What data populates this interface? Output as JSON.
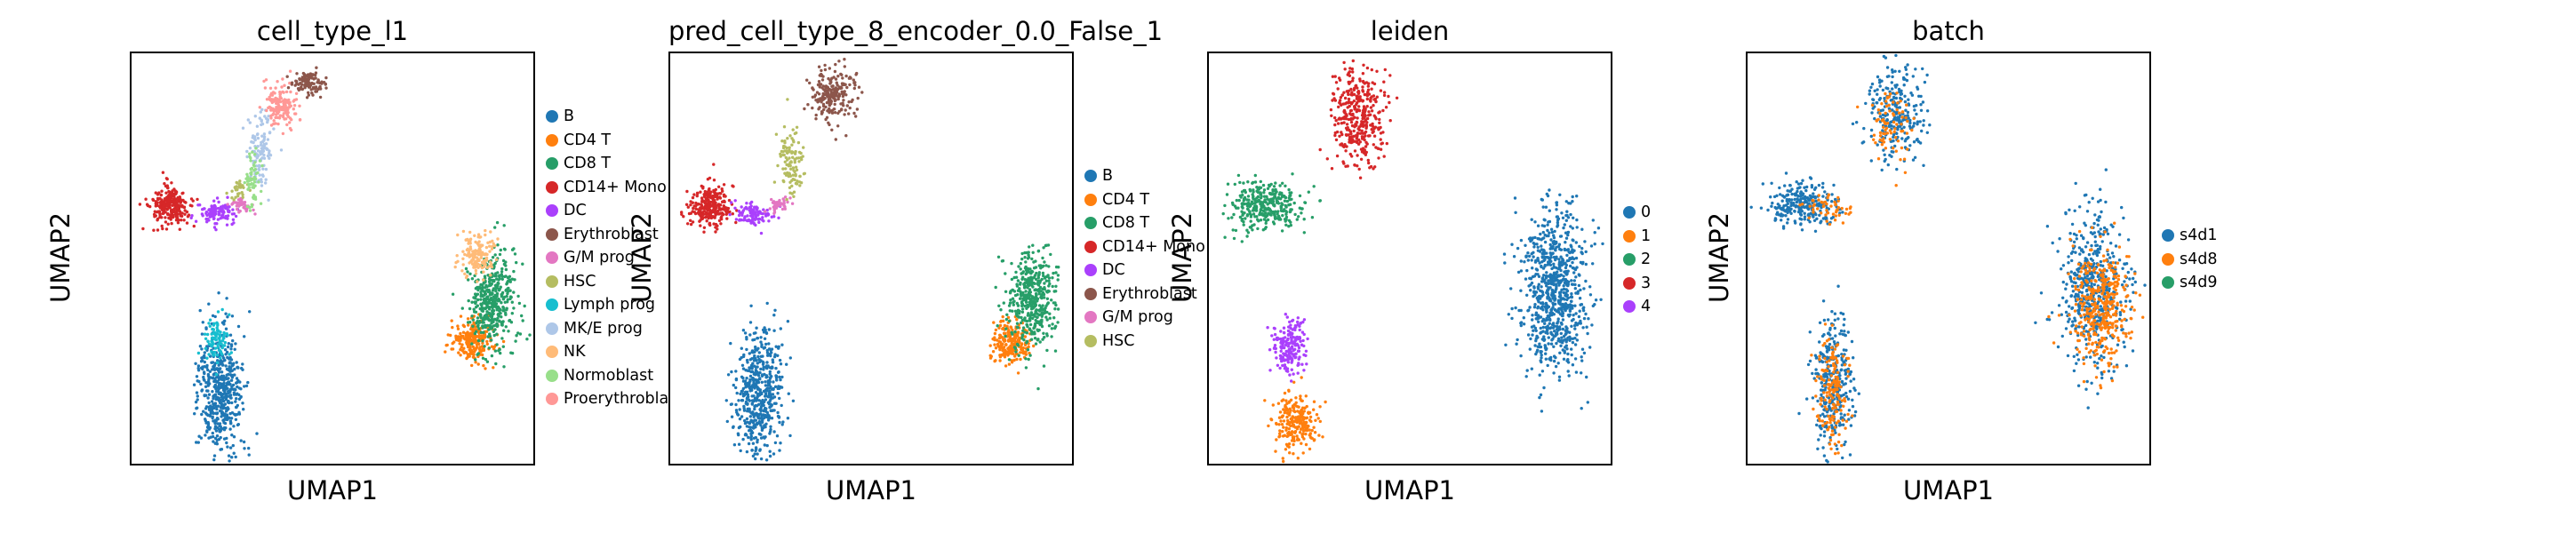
{
  "chart_data": [
    {
      "type": "scatter",
      "title": "cell_type_l1",
      "xlabel": "UMAP1",
      "ylabel": "UMAP2",
      "legend_position": "right",
      "grid": false,
      "categories": [
        {
          "name": "B",
          "color": "#1f77b4"
        },
        {
          "name": "CD4 T",
          "color": "#ff7f0e"
        },
        {
          "name": "CD8 T",
          "color": "#279e68"
        },
        {
          "name": "CD14+ Mono",
          "color": "#d62728"
        },
        {
          "name": "DC",
          "color": "#aa40fc"
        },
        {
          "name": "Erythroblast",
          "color": "#8c564b"
        },
        {
          "name": "G/M prog",
          "color": "#e377c2"
        },
        {
          "name": "HSC",
          "color": "#b5bd61"
        },
        {
          "name": "Lymph prog",
          "color": "#17becf"
        },
        {
          "name": "MK/E prog",
          "color": "#aec7e8"
        },
        {
          "name": "NK",
          "color": "#ffbb78"
        },
        {
          "name": "Normoblast",
          "color": "#98df8a"
        },
        {
          "name": "Proerythroblast",
          "color": "#ff9896"
        }
      ],
      "clusters": [
        {
          "label": "B",
          "center": [
            0.22,
            0.82
          ],
          "size": [
            0.06,
            0.16
          ],
          "n": 520
        },
        {
          "label": "Lymph prog",
          "center": [
            0.21,
            0.7
          ],
          "size": [
            0.03,
            0.05
          ],
          "n": 90
        },
        {
          "label": "CD4 T",
          "center": [
            0.85,
            0.7
          ],
          "size": [
            0.05,
            0.05
          ],
          "n": 230
        },
        {
          "label": "CD8 T",
          "center": [
            0.9,
            0.6
          ],
          "size": [
            0.06,
            0.12
          ],
          "n": 420
        },
        {
          "label": "NK",
          "center": [
            0.86,
            0.49
          ],
          "size": [
            0.04,
            0.05
          ],
          "n": 150
        },
        {
          "label": "CD14+ Mono",
          "center": [
            0.1,
            0.37
          ],
          "size": [
            0.05,
            0.05
          ],
          "n": 260
        },
        {
          "label": "DC",
          "center": [
            0.21,
            0.39
          ],
          "size": [
            0.05,
            0.03
          ],
          "n": 110
        },
        {
          "label": "G/M prog",
          "center": [
            0.27,
            0.37
          ],
          "size": [
            0.03,
            0.02
          ],
          "n": 40
        },
        {
          "label": "HSC",
          "center": [
            0.27,
            0.33
          ],
          "size": [
            0.02,
            0.03
          ],
          "n": 30
        },
        {
          "label": "MK/E prog",
          "center": [
            0.32,
            0.23
          ],
          "size": [
            0.03,
            0.09
          ],
          "n": 120
        },
        {
          "label": "Normoblast",
          "center": [
            0.3,
            0.31
          ],
          "size": [
            0.02,
            0.06
          ],
          "n": 60
        },
        {
          "label": "Proerythroblast",
          "center": [
            0.37,
            0.13
          ],
          "size": [
            0.04,
            0.05
          ],
          "n": 160
        },
        {
          "label": "Erythroblast",
          "center": [
            0.44,
            0.07
          ],
          "size": [
            0.04,
            0.03
          ],
          "n": 110
        }
      ]
    },
    {
      "type": "scatter",
      "title": "pred_cell_type_8_encoder_0.0_False_1",
      "xlabel": "UMAP1",
      "ylabel": "UMAP2",
      "legend_position": "right",
      "grid": false,
      "categories": [
        {
          "name": "B",
          "color": "#1f77b4"
        },
        {
          "name": "CD4 T",
          "color": "#ff7f0e"
        },
        {
          "name": "CD8 T",
          "color": "#279e68"
        },
        {
          "name": "CD14+ Mono",
          "color": "#d62728"
        },
        {
          "name": "DC",
          "color": "#aa40fc"
        },
        {
          "name": "Erythroblast",
          "color": "#8c564b"
        },
        {
          "name": "G/M prog",
          "color": "#e377c2"
        },
        {
          "name": "HSC",
          "color": "#b5bd61"
        }
      ],
      "clusters": [
        {
          "label": "B",
          "center": [
            0.22,
            0.83
          ],
          "size": [
            0.06,
            0.16
          ],
          "n": 540
        },
        {
          "label": "CD4 T",
          "center": [
            0.85,
            0.7
          ],
          "size": [
            0.05,
            0.05
          ],
          "n": 230
        },
        {
          "label": "CD8 T",
          "center": [
            0.9,
            0.6
          ],
          "size": [
            0.06,
            0.12
          ],
          "n": 440
        },
        {
          "label": "CD14+ Mono",
          "center": [
            0.1,
            0.37
          ],
          "size": [
            0.05,
            0.05
          ],
          "n": 270
        },
        {
          "label": "DC",
          "center": [
            0.21,
            0.39
          ],
          "size": [
            0.05,
            0.03
          ],
          "n": 110
        },
        {
          "label": "Erythroblast",
          "center": [
            0.4,
            0.1
          ],
          "size": [
            0.06,
            0.07
          ],
          "n": 220
        },
        {
          "label": "G/M prog",
          "center": [
            0.27,
            0.37
          ],
          "size": [
            0.03,
            0.02
          ],
          "n": 40
        },
        {
          "label": "HSC",
          "center": [
            0.3,
            0.26
          ],
          "size": [
            0.03,
            0.1
          ],
          "n": 110
        }
      ]
    },
    {
      "type": "scatter",
      "title": "leiden",
      "xlabel": "UMAP1",
      "ylabel": "UMAP2",
      "legend_position": "right",
      "grid": false,
      "categories": [
        {
          "name": "0",
          "color": "#1f77b4"
        },
        {
          "name": "1",
          "color": "#ff7f0e"
        },
        {
          "name": "2",
          "color": "#279e68"
        },
        {
          "name": "3",
          "color": "#d62728"
        },
        {
          "name": "4",
          "color": "#aa40fc"
        }
      ],
      "clusters": [
        {
          "label": "0",
          "center": [
            0.86,
            0.58
          ],
          "size": [
            0.08,
            0.2
          ],
          "n": 800
        },
        {
          "label": "1",
          "center": [
            0.22,
            0.9
          ],
          "size": [
            0.05,
            0.07
          ],
          "n": 240
        },
        {
          "label": "4",
          "center": [
            0.2,
            0.72
          ],
          "size": [
            0.04,
            0.07
          ],
          "n": 190
        },
        {
          "label": "2",
          "center": [
            0.14,
            0.37
          ],
          "size": [
            0.09,
            0.06
          ],
          "n": 320
        },
        {
          "label": "3",
          "center": [
            0.37,
            0.15
          ],
          "size": [
            0.07,
            0.12
          ],
          "n": 360
        }
      ]
    },
    {
      "type": "scatter",
      "title": "batch",
      "xlabel": "UMAP1",
      "ylabel": "UMAP2",
      "legend_position": "right",
      "grid": false,
      "categories": [
        {
          "name": "s4d1",
          "color": "#1f77b4"
        },
        {
          "name": "s4d8",
          "color": "#ff7f0e"
        },
        {
          "name": "s4d9",
          "color": "#279e68"
        }
      ],
      "clusters": [
        {
          "label": "s4d1",
          "center": [
            0.86,
            0.58
          ],
          "size": [
            0.08,
            0.2
          ],
          "n": 520
        },
        {
          "label": "s4d8",
          "center": [
            0.88,
            0.62
          ],
          "size": [
            0.07,
            0.14
          ],
          "n": 380
        },
        {
          "label": "s4d1",
          "center": [
            0.21,
            0.81
          ],
          "size": [
            0.05,
            0.16
          ],
          "n": 330
        },
        {
          "label": "s4d8",
          "center": [
            0.21,
            0.82
          ],
          "size": [
            0.04,
            0.13
          ],
          "n": 160
        },
        {
          "label": "s4d1",
          "center": [
            0.14,
            0.37
          ],
          "size": [
            0.09,
            0.06
          ],
          "n": 250
        },
        {
          "label": "s4d8",
          "center": [
            0.2,
            0.38
          ],
          "size": [
            0.06,
            0.03
          ],
          "n": 50
        },
        {
          "label": "s4d1",
          "center": [
            0.37,
            0.15
          ],
          "size": [
            0.07,
            0.12
          ],
          "n": 260
        },
        {
          "label": "s4d8",
          "center": [
            0.36,
            0.17
          ],
          "size": [
            0.05,
            0.08
          ],
          "n": 80
        }
      ]
    }
  ]
}
